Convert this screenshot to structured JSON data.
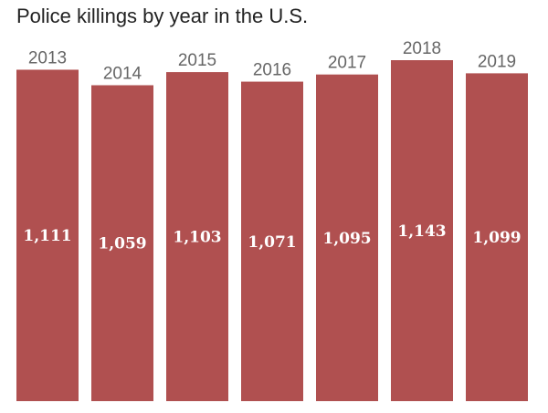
{
  "title": "Police killings by year in the U.S.",
  "colors": {
    "bar": "#b05050",
    "year_label": "#666666",
    "value_label": "#ffffff"
  },
  "chart_data": {
    "type": "bar",
    "title": "Police killings by year in the U.S.",
    "categories": [
      "2013",
      "2014",
      "2015",
      "2016",
      "2017",
      "2018",
      "2019"
    ],
    "values": [
      1111,
      1059,
      1103,
      1071,
      1095,
      1143,
      1099
    ],
    "value_labels": [
      "1,111",
      "1,059",
      "1,103",
      "1,071",
      "1,095",
      "1,143",
      "1,099"
    ],
    "xlabel": "",
    "ylabel": "",
    "ylim": [
      0,
      1143
    ],
    "grid": false,
    "legend": "none"
  }
}
